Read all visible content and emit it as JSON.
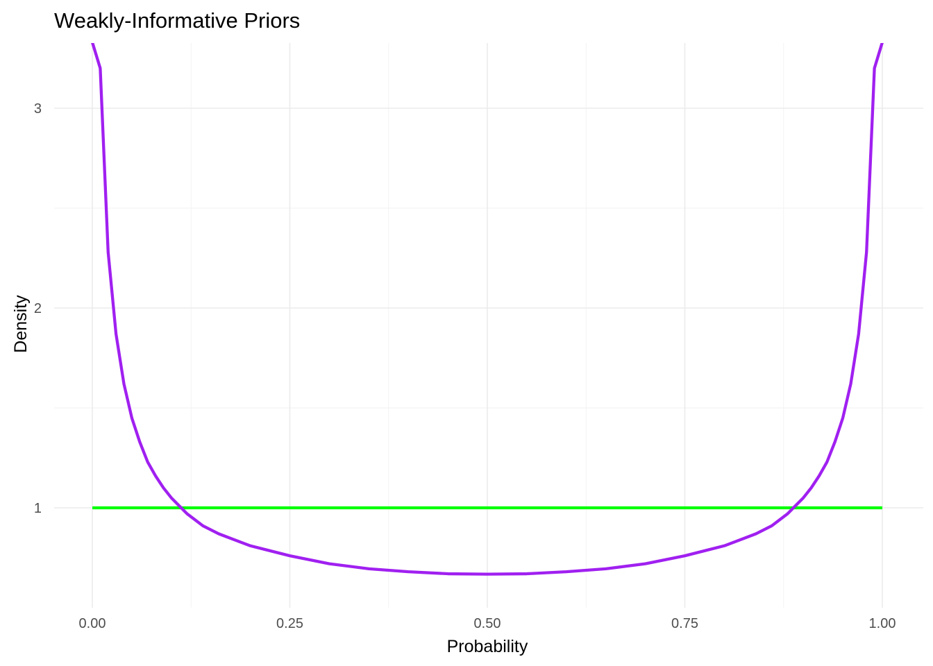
{
  "chart_data": {
    "type": "line",
    "title": "Weakly-Informative Priors",
    "xlabel": "Probability",
    "ylabel": "Density",
    "xlim": [
      0,
      1
    ],
    "ylim": [
      0.6,
      3.3
    ],
    "x_ticks": [
      0,
      0.25,
      0.5,
      0.75,
      1
    ],
    "x_tick_labels": [
      "0.00",
      "0.25",
      "0.50",
      "0.75",
      "1.00"
    ],
    "y_ticks": [
      1,
      2,
      3
    ],
    "y_tick_labels": [
      "1",
      "2",
      "3"
    ],
    "grid": true,
    "legend": "none",
    "series": [
      {
        "color": "#00ff00",
        "x": [
          0,
          1
        ],
        "y": [
          1,
          1
        ]
      },
      {
        "color": "#a020f0",
        "x": [
          0,
          0.01,
          0.02,
          0.03,
          0.04,
          0.05,
          0.06,
          0.07,
          0.08,
          0.09,
          0.1,
          0.12,
          0.14,
          0.16,
          0.18,
          0.2,
          0.25,
          0.3,
          0.35,
          0.4,
          0.45,
          0.5,
          0.55,
          0.6,
          0.65,
          0.7,
          0.75,
          0.8,
          0.82,
          0.84,
          0.86,
          0.88,
          0.9,
          0.91,
          0.92,
          0.93,
          0.94,
          0.95,
          0.96,
          0.97,
          0.98,
          0.99,
          1
        ],
        "y": [
          3.33,
          3.2,
          2.28,
          1.87,
          1.62,
          1.45,
          1.33,
          1.23,
          1.16,
          1.1,
          1.05,
          0.97,
          0.91,
          0.87,
          0.84,
          0.81,
          0.76,
          0.72,
          0.695,
          0.68,
          0.67,
          0.668,
          0.67,
          0.68,
          0.695,
          0.72,
          0.76,
          0.81,
          0.84,
          0.87,
          0.91,
          0.97,
          1.05,
          1.1,
          1.16,
          1.23,
          1.33,
          1.45,
          1.62,
          1.87,
          2.28,
          3.2,
          3.33
        ]
      }
    ]
  }
}
